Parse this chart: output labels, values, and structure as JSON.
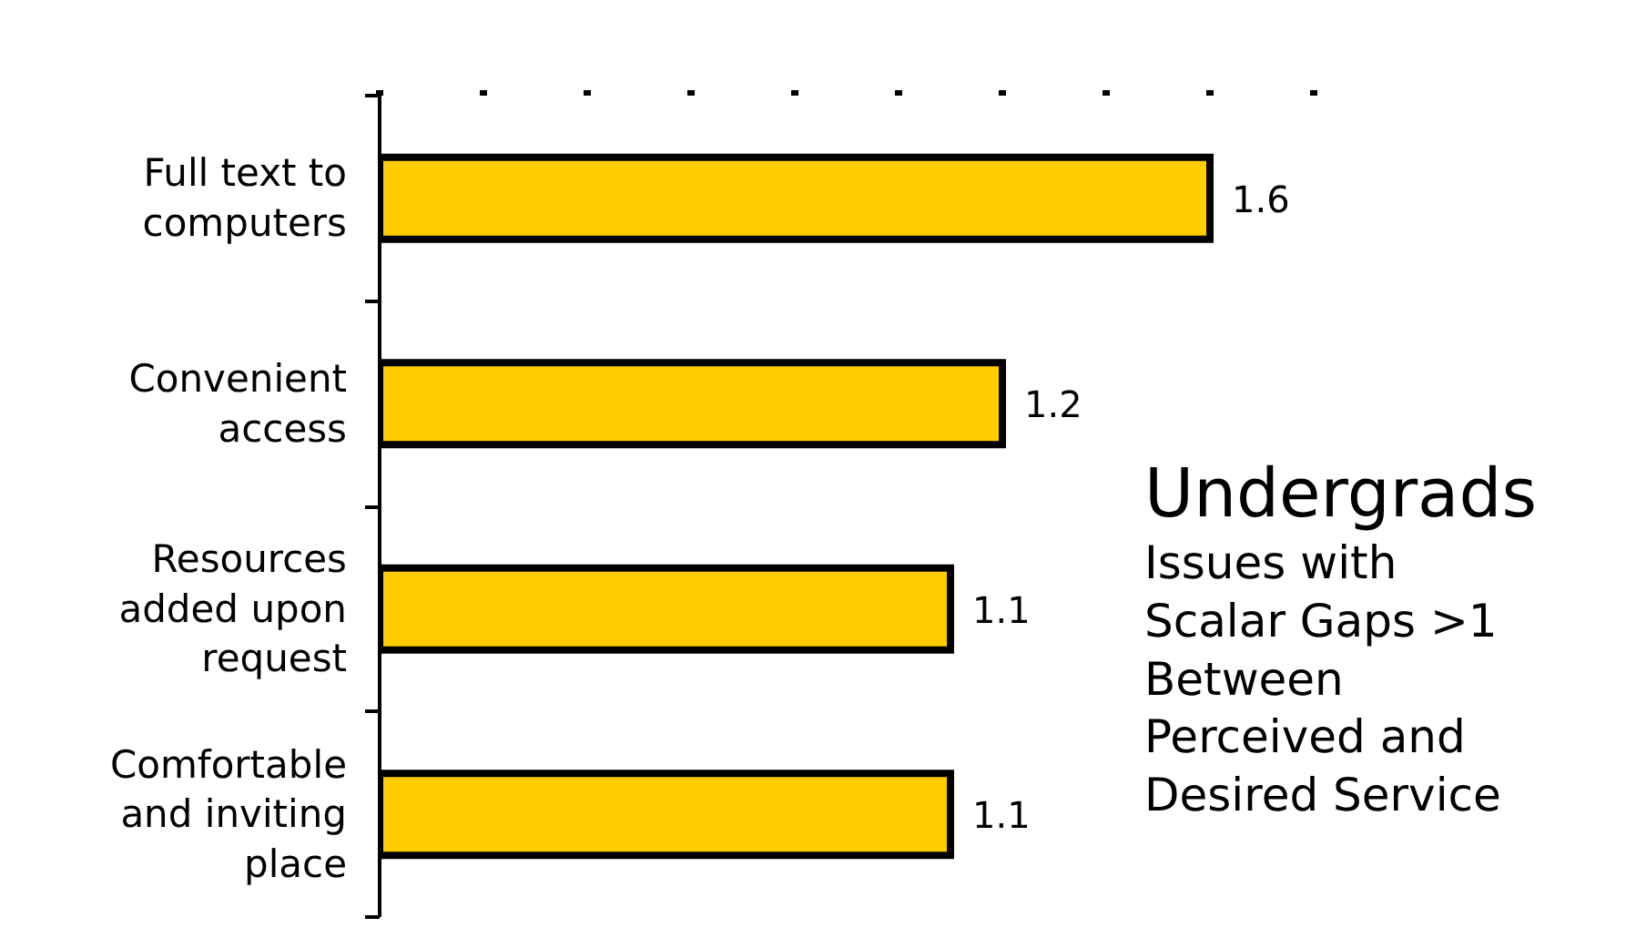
{
  "chart_data": {
    "type": "bar",
    "orientation": "horizontal",
    "title": "Undergrads",
    "subtitle": "Issues with Scalar Gaps >1 Between Perceived and Desired Service",
    "categories": [
      "Full text to computers",
      "Convenient access",
      "Resources added upon request",
      "Comfortable and inviting place"
    ],
    "values": [
      1.6,
      1.2,
      1.1,
      1.1
    ],
    "color": "#ffcc00",
    "data_labels": true,
    "xticks": [
      {
        "value": 0,
        "label": null
      },
      {
        "value": 0.2,
        "label": null
      },
      {
        "value": 0.4,
        "label": null
      },
      {
        "value": 0.6,
        "label": null
      },
      {
        "value": 0.8,
        "label": null
      },
      {
        "value": 1.0,
        "label": null
      },
      {
        "value": 1.2,
        "label": null
      },
      {
        "value": 1.4,
        "label": null
      },
      {
        "value": 1.6,
        "label": null
      },
      {
        "value": 1.8,
        "label": null
      }
    ],
    "tick_labels": "y"
  }
}
